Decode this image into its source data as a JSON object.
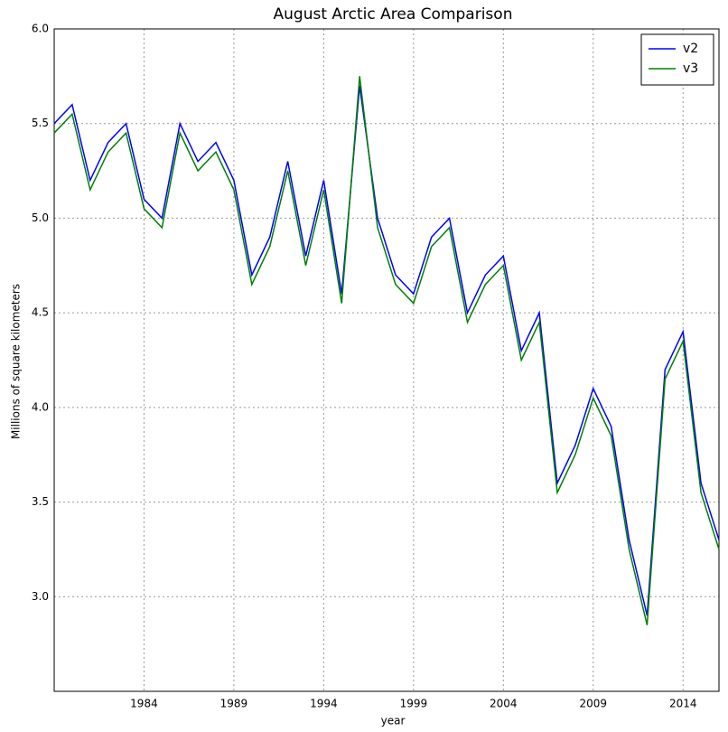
{
  "chart_data": {
    "type": "line",
    "title": "August Arctic Area Comparison",
    "xlabel": "year",
    "ylabel": "Millions of square kilometers",
    "x": [
      1979,
      1980,
      1981,
      1982,
      1983,
      1984,
      1985,
      1986,
      1987,
      1988,
      1989,
      1990,
      1991,
      1992,
      1993,
      1994,
      1995,
      1996,
      1997,
      1998,
      1999,
      2000,
      2001,
      2002,
      2003,
      2004,
      2005,
      2006,
      2007,
      2008,
      2009,
      2010,
      2011,
      2012,
      2013,
      2014,
      2015,
      2016
    ],
    "series": [
      {
        "name": "v2",
        "color": "#0000ff",
        "values": [
          5.5,
          5.6,
          5.2,
          5.4,
          5.5,
          5.1,
          5.0,
          5.5,
          5.3,
          5.4,
          5.2,
          4.7,
          4.9,
          5.3,
          4.8,
          5.2,
          4.6,
          5.7,
          5.0,
          4.7,
          4.6,
          4.9,
          5.0,
          4.5,
          4.7,
          4.8,
          4.3,
          4.5,
          3.6,
          3.8,
          4.1,
          3.9,
          3.3,
          2.9,
          4.2,
          4.4,
          3.6,
          3.3
        ]
      },
      {
        "name": "v3",
        "color": "#008000",
        "values": [
          5.45,
          5.55,
          5.15,
          5.35,
          5.45,
          5.05,
          4.95,
          5.45,
          5.25,
          5.35,
          5.15,
          4.65,
          4.85,
          5.25,
          4.75,
          5.15,
          4.55,
          5.75,
          4.95,
          4.65,
          4.55,
          4.85,
          4.95,
          4.45,
          4.65,
          4.75,
          4.25,
          4.45,
          3.55,
          3.75,
          4.05,
          3.85,
          3.25,
          2.85,
          4.15,
          4.35,
          3.55,
          3.25
        ]
      }
    ],
    "xlim": [
      1979,
      2016
    ],
    "xticks": [
      1984,
      1989,
      1994,
      1999,
      2004,
      2009,
      2014
    ],
    "ylim": [
      2.5,
      6.0
    ],
    "yticks": [
      {
        "value": 3.0,
        "label": "3.0"
      },
      3.5,
      {
        "value": 4.0,
        "label": "4.0"
      },
      4.5,
      {
        "value": 5.0,
        "label": "5.0"
      },
      5.5,
      {
        "value": 6.0,
        "label": "6.0"
      }
    ],
    "grid": true,
    "legend": "upper right"
  }
}
